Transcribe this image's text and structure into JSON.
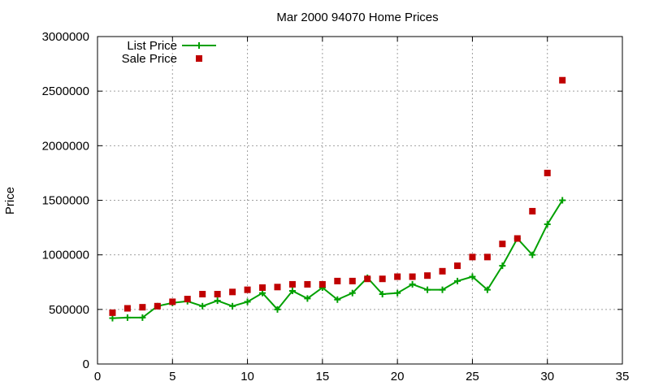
{
  "chart_data": {
    "type": "line",
    "title": "Mar 2000 94070 Home Prices",
    "xlabel": "",
    "ylabel": "Price",
    "xlim": [
      0,
      35
    ],
    "ylim": [
      0,
      3000000
    ],
    "x_ticks": [
      0,
      5,
      10,
      15,
      20,
      25,
      30,
      35
    ],
    "y_ticks": [
      0,
      500000,
      1000000,
      1500000,
      2000000,
      2500000,
      3000000
    ],
    "x_tick_labels": [
      "0",
      "5",
      "10",
      "15",
      "20",
      "25",
      "30",
      "35"
    ],
    "y_tick_labels": [
      "0",
      "500000",
      "1000000",
      "1500000",
      "2000000",
      "2500000",
      "3000000"
    ],
    "grid": true,
    "legend_position": "top-left",
    "x": [
      1,
      2,
      3,
      4,
      5,
      6,
      7,
      8,
      9,
      10,
      11,
      12,
      13,
      14,
      15,
      16,
      17,
      18,
      19,
      20,
      21,
      22,
      23,
      24,
      25,
      26,
      27,
      28,
      29,
      30,
      31
    ],
    "series": [
      {
        "name": "List Price",
        "style": "line-plus",
        "color": "#00a000",
        "values": [
          420000,
          425000,
          425000,
          530000,
          560000,
          575000,
          530000,
          580000,
          530000,
          570000,
          650000,
          500000,
          670000,
          600000,
          700000,
          590000,
          650000,
          790000,
          640000,
          650000,
          730000,
          680000,
          680000,
          760000,
          800000,
          680000,
          900000,
          1150000,
          1000000,
          1280000,
          1500000
        ]
      },
      {
        "name": "Sale Price",
        "style": "square-marker",
        "color": "#c00000",
        "values": [
          470000,
          510000,
          520000,
          530000,
          570000,
          595000,
          640000,
          640000,
          660000,
          680000,
          700000,
          705000,
          730000,
          730000,
          730000,
          760000,
          760000,
          780000,
          780000,
          800000,
          800000,
          810000,
          850000,
          900000,
          980000,
          980000,
          1100000,
          1150000,
          1400000,
          1750000,
          2600000
        ]
      }
    ]
  }
}
